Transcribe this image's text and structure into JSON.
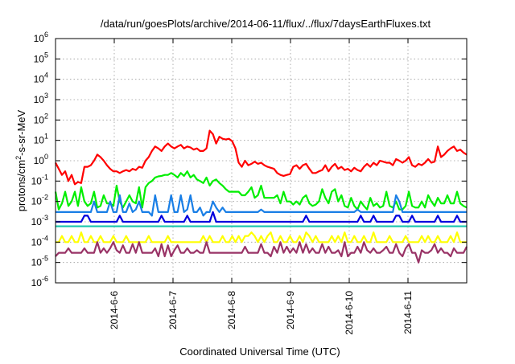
{
  "chart_data": {
    "type": "line",
    "title": "/data/run/goesPlots/archive/2014-06-11/flux/../flux/7daysEarthFluxes.txt",
    "xlabel": "Coordinated Universal Time (UTC)",
    "ylabel": {
      "pre": "protons/cm",
      "sup": "2",
      "post": "-s-sr-MeV"
    },
    "y_scale": "log",
    "y_range_exponent": [
      -6,
      6
    ],
    "y_ticks": [
      {
        "base": "10",
        "exp": "-6"
      },
      {
        "base": "10",
        "exp": "-5"
      },
      {
        "base": "10",
        "exp": "-4"
      },
      {
        "base": "10",
        "exp": "-3"
      },
      {
        "base": "10",
        "exp": "-2"
      },
      {
        "base": "10",
        "exp": "-1"
      },
      {
        "base": "10",
        "exp": "0"
      },
      {
        "base": "10",
        "exp": "1"
      },
      {
        "base": "10",
        "exp": "2"
      },
      {
        "base": "10",
        "exp": "3"
      },
      {
        "base": "10",
        "exp": "4"
      },
      {
        "base": "10",
        "exp": "5"
      },
      {
        "base": "10",
        "exp": "6"
      }
    ],
    "x_range_days": [
      "2014-06-05 00:00",
      "2014-06-12 00:00"
    ],
    "x_ticks": [
      "2014-6-6",
      "2014-6-7",
      "2014-6-8",
      "2014-6-9",
      "2014-6-10",
      "2014-6-11"
    ],
    "grid": true,
    "legend": "none",
    "series": [
      {
        "color": "#ff0000",
        "values": [
          0.8,
          0.4,
          0.2,
          0.3,
          0.1,
          0.2,
          0.07,
          0.09,
          0.08,
          0.5,
          0.5,
          0.6,
          1.0,
          2.0,
          1.5,
          1.0,
          0.6,
          0.4,
          0.3,
          0.3,
          0.25,
          0.3,
          0.35,
          0.3,
          0.4,
          0.35,
          0.5,
          0.45,
          1.0,
          1.5,
          3.0,
          5.0,
          4.0,
          3.0,
          5.0,
          7.0,
          5.0,
          4.0,
          5.0,
          6.0,
          4.0,
          5.0,
          4.5,
          3.5,
          4.0,
          3.0,
          3.0,
          4.0,
          30,
          20,
          7,
          15,
          12,
          11,
          12,
          9,
          4,
          0.8,
          0.5,
          1.0,
          0.6,
          0.7,
          0.9,
          0.7,
          0.8,
          0.6,
          0.5,
          0.45,
          0.4,
          0.25,
          0.2,
          0.18,
          0.2,
          0.22,
          0.5,
          0.6,
          0.4,
          0.6,
          0.7,
          0.4,
          0.25,
          0.25,
          0.3,
          0.35,
          0.6,
          0.3,
          0.5,
          0.7,
          0.4,
          0.5,
          0.35,
          0.4,
          0.3,
          0.45,
          0.35,
          0.3,
          0.5,
          0.7,
          0.5,
          0.8,
          0.6,
          1.0,
          0.9,
          0.8,
          0.8,
          0.6,
          1.2,
          1.0,
          0.8,
          1.0,
          1.5,
          0.6,
          0.5,
          0.7,
          0.6,
          0.8,
          1.2,
          0.8,
          0.9,
          5.0,
          1.5,
          2.0,
          3.0,
          4.0,
          5.0,
          3.0,
          3.5,
          2.5,
          2.0
        ]
      },
      {
        "color": "#00ee00",
        "values": [
          0.03,
          0.004,
          0.008,
          0.03,
          0.006,
          0.01,
          0.03,
          0.006,
          0.05,
          0.01,
          0.006,
          0.008,
          0.03,
          0.005,
          0.006,
          0.02,
          0.008,
          0.008,
          0.006,
          0.06,
          0.01,
          0.005,
          0.01,
          0.02,
          0.01,
          0.008,
          0.05,
          0.005,
          0.05,
          0.08,
          0.1,
          0.15,
          0.17,
          0.18,
          0.2,
          0.2,
          0.25,
          0.2,
          0.15,
          0.25,
          0.18,
          0.3,
          0.15,
          0.2,
          0.12,
          0.1,
          0.08,
          0.15,
          0.06,
          0.1,
          0.12,
          0.08,
          0.06,
          0.04,
          0.03,
          0.03,
          0.03,
          0.03,
          0.02,
          0.02,
          0.03,
          0.05,
          0.015,
          0.02,
          0.06,
          0.015,
          0.015,
          0.015,
          0.015,
          0.02,
          0.008,
          0.03,
          0.01,
          0.01,
          0.007,
          0.01,
          0.007,
          0.015,
          0.02,
          0.008,
          0.006,
          0.007,
          0.01,
          0.04,
          0.015,
          0.008,
          0.03,
          0.04,
          0.01,
          0.02,
          0.006,
          0.005,
          0.015,
          0.006,
          0.004,
          0.01,
          0.006,
          0.004,
          0.015,
          0.006,
          0.008,
          0.005,
          0.006,
          0.03,
          0.006,
          0.005,
          0.01,
          0.004,
          0.004,
          0.006,
          0.03,
          0.006,
          0.005,
          0.005,
          0.01,
          0.005,
          0.02,
          0.01,
          0.006,
          0.015,
          0.008,
          0.008,
          0.02,
          0.008,
          0.008,
          0.03,
          0.008,
          0.006,
          0.005
        ]
      },
      {
        "color": "#1a7fe6",
        "values": [
          0.003,
          0.003,
          0.003,
          0.003,
          0.003,
          0.003,
          0.003,
          0.003,
          0.003,
          0.003,
          0.003,
          0.003,
          0.01,
          0.003,
          0.003,
          0.003,
          0.003,
          0.01,
          0.003,
          0.003,
          0.02,
          0.003,
          0.003,
          0.008,
          0.003,
          0.004,
          0.01,
          0.003,
          0.003,
          0.003,
          0.002,
          0.02,
          0.003,
          0.003,
          0.003,
          0.003,
          0.02,
          0.003,
          0.003,
          0.02,
          0.003,
          0.004,
          0.02,
          0.003,
          0.003,
          0.005,
          0.002,
          0.003,
          0.003,
          0.01,
          0.005,
          0.003,
          0.005,
          0.003,
          0.003,
          0.003,
          0.003,
          0.003,
          0.003,
          0.003,
          0.003,
          0.003,
          0.003,
          0.003,
          0.004,
          0.003,
          0.003,
          0.003,
          0.003,
          0.003,
          0.003,
          0.003,
          0.003,
          0.003,
          0.003,
          0.003,
          0.003,
          0.003,
          0.003,
          0.003,
          0.003,
          0.003,
          0.003,
          0.003,
          0.003,
          0.003,
          0.003,
          0.003,
          0.003,
          0.003,
          0.003,
          0.003,
          0.003,
          0.003,
          0.004,
          0.003,
          0.003,
          0.003,
          0.003,
          0.003,
          0.003,
          0.003,
          0.003,
          0.003,
          0.003,
          0.003,
          0.02,
          0.01,
          0.003,
          0.003,
          0.003,
          0.003,
          0.003,
          0.003,
          0.003,
          0.003,
          0.003,
          0.003,
          0.003,
          0.003,
          0.003,
          0.003,
          0.003,
          0.003,
          0.003,
          0.003,
          0.003,
          0.003,
          0.003
        ]
      },
      {
        "color": "#0000dd",
        "values": [
          0.001,
          0.001,
          0.001,
          0.001,
          0.001,
          0.001,
          0.001,
          0.001,
          0.001,
          0.002,
          0.002,
          0.001,
          0.001,
          0.001,
          0.001,
          0.001,
          0.001,
          0.001,
          0.001,
          0.001,
          0.002,
          0.001,
          0.001,
          0.001,
          0.001,
          0.001,
          0.001,
          0.001,
          0.001,
          0.001,
          0.001,
          0.001,
          0.001,
          0.002,
          0.001,
          0.001,
          0.001,
          0.001,
          0.001,
          0.001,
          0.001,
          0.002,
          0.001,
          0.001,
          0.001,
          0.001,
          0.001,
          0.001,
          0.001,
          0.003,
          0.001,
          0.001,
          0.001,
          0.001,
          0.001,
          0.001,
          0.001,
          0.001,
          0.001,
          0.001,
          0.001,
          0.001,
          0.001,
          0.001,
          0.001,
          0.001,
          0.001,
          0.001,
          0.001,
          0.001,
          0.001,
          0.001,
          0.001,
          0.001,
          0.001,
          0.001,
          0.001,
          0.001,
          0.002,
          0.001,
          0.001,
          0.001,
          0.001,
          0.001,
          0.001,
          0.001,
          0.001,
          0.001,
          0.001,
          0.001,
          0.001,
          0.001,
          0.001,
          0.001,
          0.001,
          0.002,
          0.001,
          0.001,
          0.001,
          0.002,
          0.001,
          0.001,
          0.001,
          0.001,
          0.001,
          0.001,
          0.002,
          0.002,
          0.001,
          0.001,
          0.001,
          0.002,
          0.001,
          0.001,
          0.001,
          0.001,
          0.001,
          0.001,
          0.001,
          0.002,
          0.001,
          0.001,
          0.001,
          0.001,
          0.001,
          0.002,
          0.001,
          0.001,
          0.001
        ]
      },
      {
        "color": "#20c8b0",
        "values": [
          0.0006,
          0.0006,
          0.0006,
          0.0006,
          0.0006,
          0.0006,
          0.0006,
          0.0006,
          0.0006,
          0.0006,
          0.0006,
          0.0006,
          0.0006,
          0.0006,
          0.0006,
          0.0006,
          0.0006,
          0.0006,
          0.0006,
          0.0006,
          0.0006,
          0.0006,
          0.0006,
          0.0006,
          0.0006,
          0.0006,
          0.0006,
          0.0006,
          0.0006,
          0.0006,
          0.0006,
          0.0006,
          0.0006,
          0.0006,
          0.0006,
          0.0006,
          0.0006,
          0.0006,
          0.0006,
          0.0006,
          0.0006,
          0.0006,
          0.0006,
          0.0006,
          0.0006,
          0.0006,
          0.0006,
          0.0006,
          0.0006,
          0.0006,
          0.0006,
          0.0006,
          0.0006,
          0.0006,
          0.0006,
          0.0006,
          0.0006,
          0.0006,
          0.0006,
          0.0006,
          0.0006,
          0.0006,
          0.0006,
          0.0006,
          0.0006,
          0.0006,
          0.0006,
          0.0006,
          0.0006,
          0.0006,
          0.0006,
          0.0006,
          0.0006,
          0.0006,
          0.0006,
          0.0006,
          0.0006,
          0.0006,
          0.0006,
          0.0006,
          0.0006,
          0.0006,
          0.0006,
          0.0006,
          0.0006,
          0.0006,
          0.0006,
          0.0006,
          0.0006,
          0.0006,
          0.0006,
          0.0006,
          0.0006,
          0.0006,
          0.0006,
          0.0006,
          0.0006,
          0.0006,
          0.0006,
          0.0006,
          0.0006,
          0.0006,
          0.0006,
          0.0006,
          0.0006,
          0.0006,
          0.0006,
          0.0006,
          0.0006,
          0.0006,
          0.0006,
          0.0006,
          0.0006,
          0.0006,
          0.0006,
          0.0006,
          0.0006,
          0.0006,
          0.0006,
          0.0006,
          0.0006,
          0.0006,
          0.0006,
          0.0006,
          0.0006,
          0.0006,
          0.0006,
          0.0006,
          0.0006
        ]
      },
      {
        "color": "#ffff00",
        "values": [
          0.0001,
          0.0001,
          0.0002,
          0.0001,
          0.0001,
          0.0002,
          0.0001,
          0.0001,
          0.0003,
          0.0001,
          0.0001,
          0.0002,
          0.0001,
          0.0001,
          0.0002,
          0.0001,
          0.0001,
          0.0001,
          0.0002,
          0.0001,
          0.0001,
          0.0001,
          0.0002,
          0.0001,
          0.0001,
          0.0001,
          0.0001,
          0.0001,
          0.0001,
          0.0002,
          0.0001,
          0.0001,
          0.0001,
          0.0001,
          0.0001,
          0.0002,
          0.0001,
          0.0001,
          0.0001,
          0.0001,
          0.0001,
          0.0001,
          0.0001,
          0.0001,
          0.0001,
          0.0001,
          0.0002,
          0.0001,
          0.0002,
          0.0001,
          0.0001,
          0.0001,
          0.0002,
          0.0001,
          0.0001,
          0.0002,
          0.0001,
          0.0002,
          0.0001,
          0.0002,
          0.0002,
          0.0003,
          0.0002,
          0.0001,
          0.0002,
          0.0001,
          0.0002,
          0.0003,
          0.0001,
          0.0001,
          0.0002,
          0.0001,
          0.0001,
          0.0002,
          0.0001,
          0.0001,
          0.0002,
          0.0001,
          0.0003,
          0.0002,
          0.0001,
          0.0002,
          0.0001,
          0.0001,
          0.0001,
          0.0001,
          0.0002,
          0.0001,
          0.0002,
          0.0001,
          0.0003,
          0.0001,
          0.0001,
          0.0002,
          0.0001,
          0.0001,
          0.0002,
          0.0001,
          0.0001,
          0.0003,
          0.0001,
          0.0001,
          0.0001,
          0.0001,
          0.0002,
          0.0001,
          0.0001,
          0.0001,
          0.0001,
          0.0002,
          0.0001,
          0.0001,
          0.0001,
          0.0001,
          0.0002,
          0.0001,
          0.0002,
          0.0001,
          0.0001,
          0.0002,
          0.0001,
          0.0001,
          0.0001,
          0.0002,
          0.0001,
          0.0003,
          0.0001,
          0.0001,
          0.0001
        ]
      },
      {
        "color": "#993366",
        "values": [
          2e-05,
          3e-05,
          3e-05,
          3e-05,
          5e-05,
          3e-05,
          3e-05,
          3e-05,
          3e-05,
          5e-05,
          3e-05,
          3e-05,
          3e-05,
          0.0001,
          3e-05,
          5e-05,
          3e-05,
          5e-05,
          0.0001,
          4e-05,
          3e-05,
          7e-05,
          3e-05,
          3e-05,
          8e-05,
          3e-05,
          0.0001,
          3e-05,
          3e-05,
          3e-05,
          3e-05,
          5e-05,
          2e-05,
          8e-05,
          2e-05,
          7e-05,
          2e-05,
          4e-05,
          7e-05,
          3e-05,
          3e-05,
          5e-05,
          3e-05,
          3e-05,
          4e-05,
          3e-05,
          3e-05,
          0.0001,
          3e-05,
          3e-05,
          3e-05,
          3e-05,
          3e-05,
          3e-05,
          3e-05,
          3e-05,
          3e-05,
          3e-05,
          3e-05,
          6e-05,
          3e-05,
          3e-05,
          3e-05,
          3e-05,
          8e-05,
          3e-05,
          3e-05,
          2e-05,
          6e-05,
          3e-05,
          0.0001,
          3e-05,
          6e-05,
          3e-05,
          5e-05,
          3e-05,
          0.0001,
          3e-05,
          8e-05,
          3e-05,
          5e-05,
          3e-05,
          3e-05,
          8e-05,
          3e-05,
          6e-05,
          3e-05,
          3e-05,
          4e-05,
          2e-05,
          0.0001,
          2e-05,
          3e-05,
          3e-05,
          6e-05,
          3e-05,
          0.0001,
          4e-05,
          3e-05,
          5e-05,
          3e-05,
          3e-05,
          4e-05,
          6e-05,
          3e-05,
          3e-05,
          8e-05,
          3e-05,
          2e-05,
          5e-05,
          8e-05,
          3e-05,
          3e-05,
          1e-05,
          4e-05,
          3e-05,
          3e-05,
          4e-05,
          8e-05,
          3e-05,
          5e-05,
          3e-05,
          3e-05,
          2e-05,
          5e-05,
          3e-05,
          3e-05,
          3e-05,
          6e-05
        ]
      }
    ]
  }
}
